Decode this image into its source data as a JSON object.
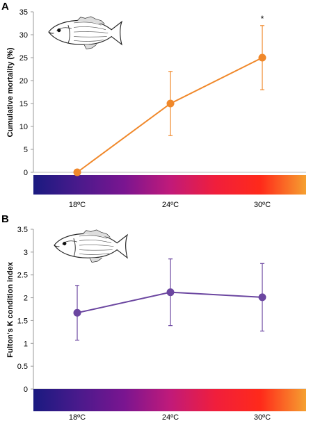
{
  "colors": {
    "panel_a_series": "#F0882A",
    "panel_b_series": "#6B46A0",
    "gradient_stops": [
      "#1A1A80",
      "#4A1A8C",
      "#7A1590",
      "#C01A7A",
      "#F01E3C",
      "#FF2A1A",
      "#F5A030"
    ]
  },
  "icons": [
    "fish-illustration-icon"
  ],
  "chart_data": [
    {
      "panel_label": "A",
      "type": "line",
      "categories": [
        "18ºC",
        "24ºC",
        "30ºC"
      ],
      "series": [
        {
          "values": [
            0,
            15,
            25
          ],
          "error": [
            0,
            7,
            7
          ]
        }
      ],
      "ylabel": "Cumulative mortality (%)",
      "xlabel": "",
      "ylim": [
        0,
        35
      ],
      "yticks": [
        "0",
        "5",
        "10",
        "15",
        "20",
        "25",
        "30",
        "35"
      ],
      "annotations": [
        {
          "text": "*",
          "category": "30ºC"
        }
      ],
      "grid": false,
      "x_axis": "temperature color gradient bar (blue to orange)"
    },
    {
      "panel_label": "B",
      "type": "line",
      "categories": [
        "18ºC",
        "24ºC",
        "30ºC"
      ],
      "series": [
        {
          "values": [
            1.67,
            2.12,
            2.01
          ],
          "error": [
            0.6,
            0.73,
            0.74
          ]
        }
      ],
      "ylabel": "Fulton's K condition index",
      "xlabel": "",
      "ylim": [
        0,
        3.5
      ],
      "yticks": [
        "0",
        "0.5",
        "1",
        "1.5",
        "2",
        "2.5",
        "3",
        "3.5"
      ],
      "annotations": [],
      "grid": false,
      "x_axis": "temperature color gradient bar (blue to orange)"
    }
  ]
}
